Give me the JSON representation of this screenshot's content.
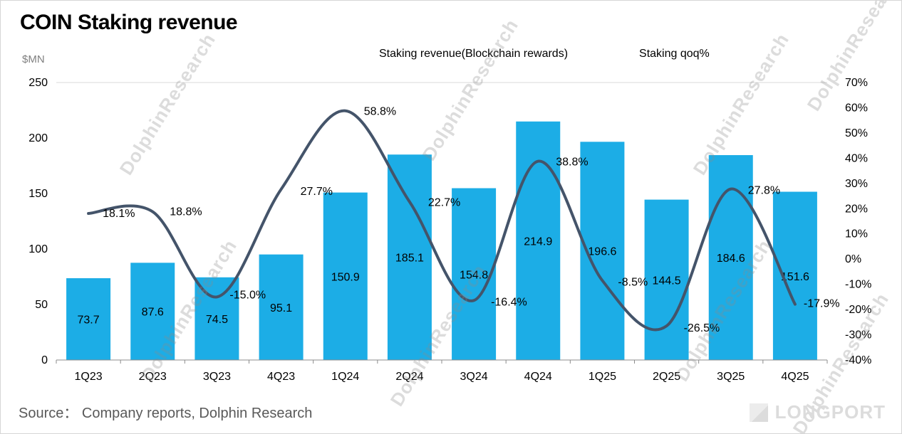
{
  "title": "COIN Staking revenue",
  "unit_label": "$MN",
  "source": "Source： Company reports, Dolphin Research",
  "watermark": "DolphinResearch",
  "brand": "LONGPORT",
  "chart_data": {
    "type": "combo (bar + smooth line)",
    "categories": [
      "1Q23",
      "2Q23",
      "3Q23",
      "4Q23",
      "1Q24",
      "2Q24",
      "3Q24",
      "4Q24",
      "1Q25",
      "2Q25",
      "3Q25",
      "4Q25"
    ],
    "series": [
      {
        "name": "Staking revenue(Blockchain rewards)",
        "type": "bar",
        "axis": "left",
        "color": "#1cade6",
        "values": [
          73.7,
          87.6,
          74.5,
          95.1,
          150.9,
          185.1,
          154.8,
          214.9,
          196.6,
          144.5,
          184.6,
          151.6
        ],
        "labels": [
          "73.7",
          "87.6",
          "74.5",
          "95.1",
          "150.9",
          "185.1",
          "154.8",
          "214.9",
          "196.6",
          "144.5",
          "184.6",
          "151.6"
        ]
      },
      {
        "name": "Staking qoq%",
        "type": "line",
        "axis": "right",
        "color": "#44546a",
        "values": [
          18.1,
          18.8,
          -15.0,
          27.7,
          58.8,
          22.7,
          -16.4,
          38.8,
          -8.5,
          -26.5,
          27.8,
          -17.9
        ],
        "labels": [
          "18.1%",
          "18.8%",
          "-15.0%",
          "27.7%",
          "58.8%",
          "22.7%",
          "-16.4%",
          "38.8%",
          "-8.5%",
          "-26.5%",
          "27.8%",
          "-17.9%"
        ]
      }
    ],
    "left_axis": {
      "title": "$MN",
      "min": 0,
      "max": 250,
      "step": 50,
      "ticks": [
        "0",
        "50",
        "100",
        "150",
        "200",
        "250"
      ]
    },
    "right_axis": {
      "min": -40,
      "max": 70,
      "step": 10,
      "suffix": "%",
      "ticks": [
        "-40%",
        "-30%",
        "-20%",
        "-10%",
        "0%",
        "10%",
        "20%",
        "30%",
        "40%",
        "50%",
        "60%",
        "70%"
      ]
    },
    "legend_position": "top",
    "grid": "off"
  }
}
